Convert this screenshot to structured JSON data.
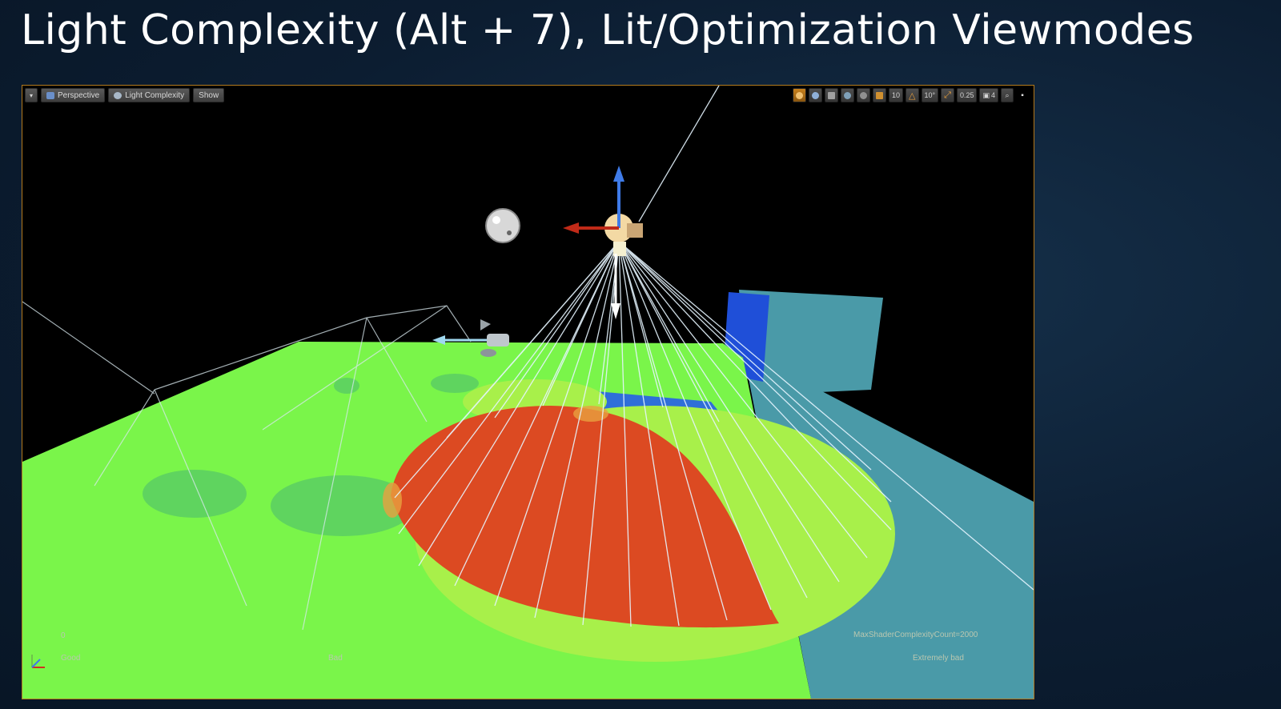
{
  "slide": {
    "title": "Light Complexity (Alt + 7), Lit/Optimization Viewmodes"
  },
  "viewport": {
    "toolbar_left": {
      "menu_icon": "chevron-down-icon",
      "perspective_label": "Perspective",
      "viewmode_label": "Light Complexity",
      "show_label": "Show"
    },
    "toolbar_right": {
      "grid_snap_value": "10",
      "rotation_snap_value": "10°",
      "scale_snap_value": "0.25",
      "camera_speed_value": "4"
    },
    "legend": {
      "zero_label": "0",
      "good_label": "Good",
      "bad_label": "Bad",
      "extremely_bad_label": "Extremely bad",
      "max_count_label": "MaxShaderComplexityCount=2000"
    },
    "colors": {
      "floor_green": "#7af54a",
      "overlap_yellow": "#a8f04a",
      "hot_red": "#dc4a22",
      "wall_teal": "#4a9aa8",
      "mesh_blue": "#1f4fd8",
      "frame_border": "#b37a1e"
    }
  }
}
